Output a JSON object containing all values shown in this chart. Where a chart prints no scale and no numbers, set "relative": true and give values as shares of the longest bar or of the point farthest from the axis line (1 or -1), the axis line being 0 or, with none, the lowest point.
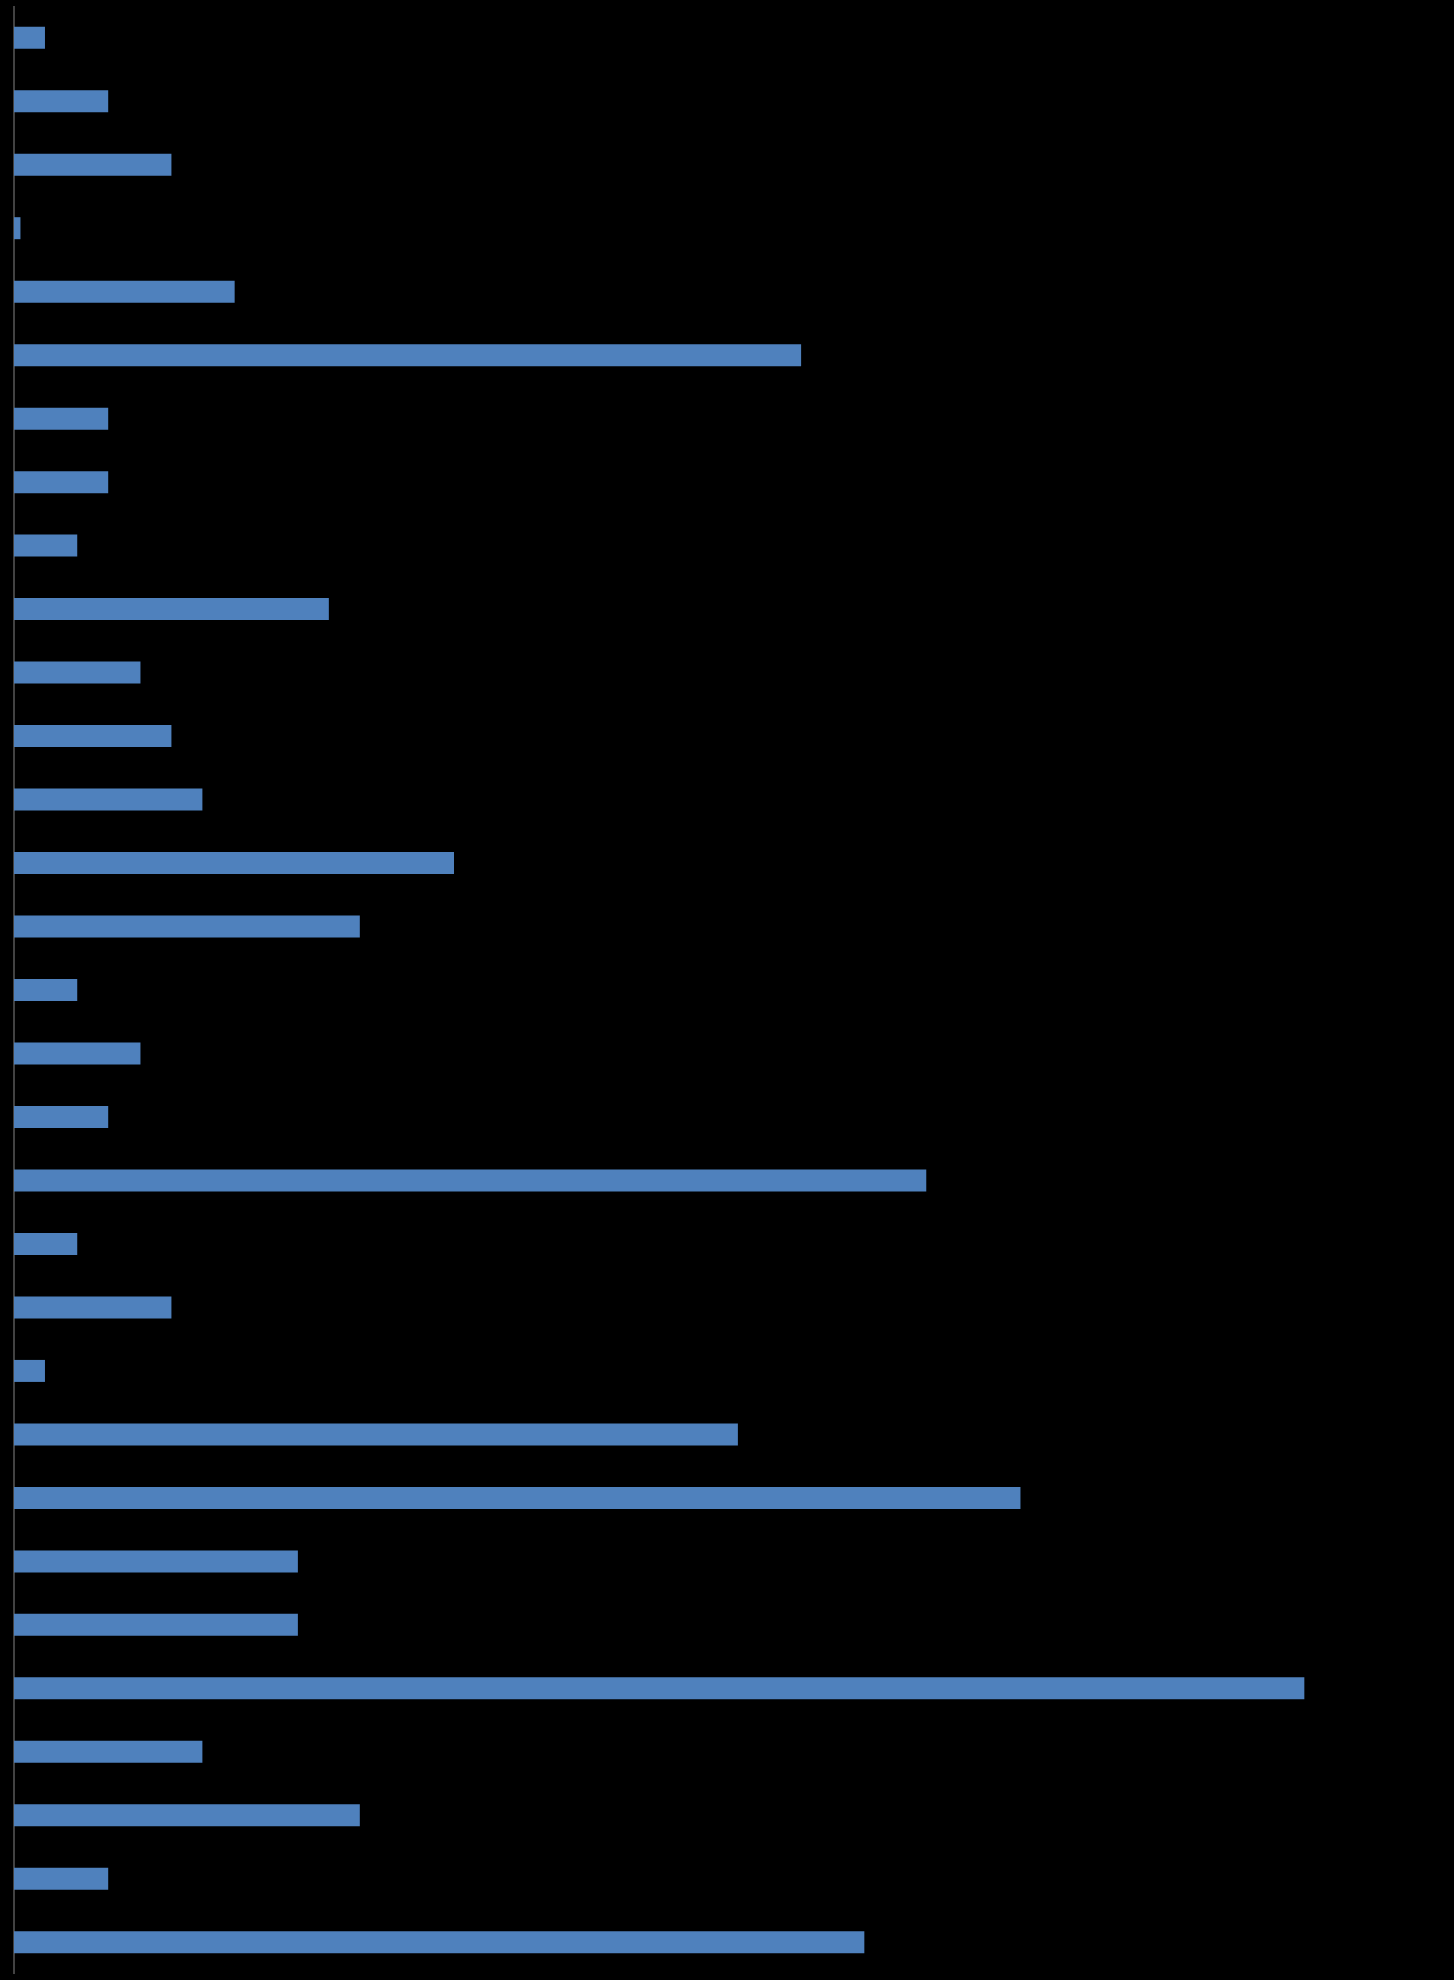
{
  "chart_data": {
    "type": "bar",
    "orientation": "horizontal",
    "relative": true,
    "color": "#4f81bd",
    "categories": [
      null,
      null,
      null,
      null,
      null,
      null,
      null,
      null,
      null,
      null,
      null,
      null,
      null,
      null,
      null,
      null,
      null,
      null,
      null,
      null,
      null,
      null,
      null,
      null,
      null,
      null,
      null,
      null,
      null,
      null,
      null
    ],
    "values": [
      0.024,
      0.073,
      0.122,
      0.005,
      0.171,
      0.61,
      0.073,
      0.073,
      0.049,
      0.244,
      0.098,
      0.122,
      0.146,
      0.341,
      0.268,
      0.049,
      0.098,
      0.073,
      0.707,
      0.049,
      0.122,
      0.024,
      0.561,
      0.78,
      0.22,
      0.22,
      1,
      0.146,
      0.268,
      0.073,
      0.659
    ]
  }
}
